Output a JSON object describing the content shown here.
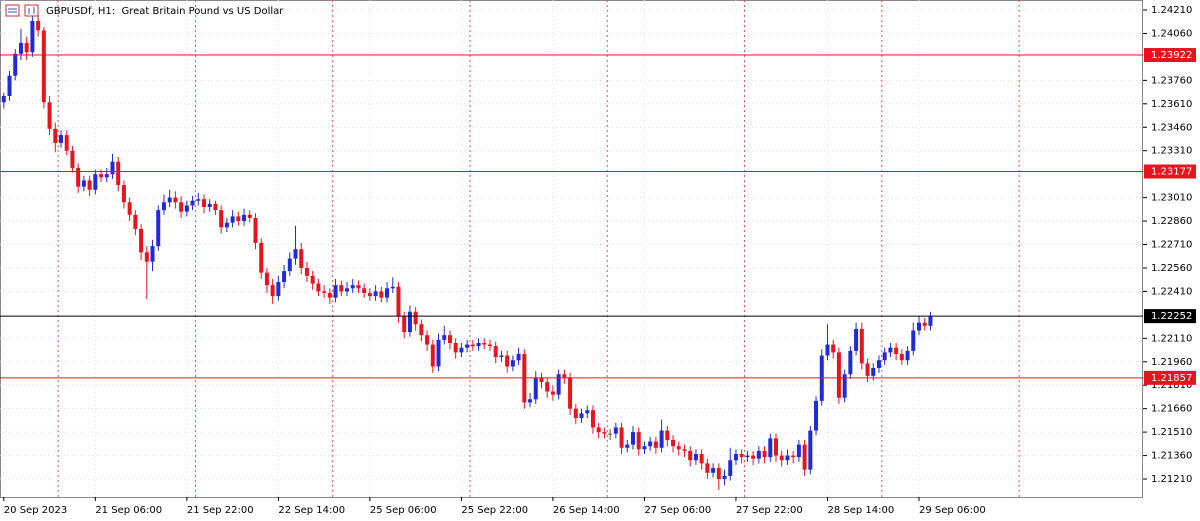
{
  "chart_data": {
    "type": "candlestick",
    "title": "GBPUSDf, H1:  Great Britain Pound vs US Dollar",
    "up_color": "#1f2ad8",
    "down_color": "#e8141d",
    "ylim": [
      1.21095,
      1.24274
    ],
    "yticks": [
      {
        "value": 1.2421,
        "label": "1.24210"
      },
      {
        "value": 1.2406,
        "label": "1.24060"
      },
      {
        "value": 1.2376,
        "label": "1.23760"
      },
      {
        "value": 1.2361,
        "label": "1.23610"
      },
      {
        "value": 1.2346,
        "label": "1.23460"
      },
      {
        "value": 1.2331,
        "label": "1.23310"
      },
      {
        "value": 1.2301,
        "label": "1.23010"
      },
      {
        "value": 1.2286,
        "label": "1.22860"
      },
      {
        "value": 1.2271,
        "label": "1.22710"
      },
      {
        "value": 1.2256,
        "label": "1.22560"
      },
      {
        "value": 1.2241,
        "label": "1.22410"
      },
      {
        "value": 1.2211,
        "label": "1.22110"
      },
      {
        "value": 1.2196,
        "label": "1.21960"
      },
      {
        "value": 1.2181,
        "label": "1.21810"
      },
      {
        "value": 1.2166,
        "label": "1.21660"
      },
      {
        "value": 1.2151,
        "label": "1.21510"
      },
      {
        "value": 1.2136,
        "label": "1.21360"
      },
      {
        "value": 1.2121,
        "label": "1.21210"
      }
    ],
    "grid": true,
    "xticks": [
      {
        "value": 0,
        "label": "20 Sep 2023"
      },
      {
        "value": 16,
        "label": "21 Sep 06:00"
      },
      {
        "value": 32,
        "label": "21 Sep 22:00"
      },
      {
        "value": 48,
        "label": "22 Sep 14:00"
      },
      {
        "value": 64,
        "label": "25 Sep 06:00"
      },
      {
        "value": 80,
        "label": "25 Sep 22:00"
      },
      {
        "value": 96,
        "label": "26 Sep 14:00"
      },
      {
        "value": 112,
        "label": "27 Sep 06:00"
      },
      {
        "value": 128,
        "label": "27 Sep 22:00"
      },
      {
        "value": 144,
        "label": "28 Sep 14:00"
      },
      {
        "value": 160,
        "label": "29 Sep 06:00"
      }
    ],
    "period_separators": [
      10,
      34,
      58,
      82,
      106,
      130,
      154,
      178
    ],
    "levels": [
      {
        "value": 1.23922,
        "color": "#e8141d"
      },
      {
        "value": 1.23177,
        "color": "#e8141d"
      },
      {
        "value": 1.22252,
        "color": "#000000"
      },
      {
        "value": 1.21857,
        "color": "#e8141d"
      }
    ],
    "ohlc": [
      [
        1.2362,
        1.2368,
        1.2358,
        1.2366
      ],
      [
        1.2366,
        1.2382,
        1.2363,
        1.2379
      ],
      [
        1.2379,
        1.2396,
        1.2376,
        1.2393
      ],
      [
        1.2393,
        1.2409,
        1.2389,
        1.24
      ],
      [
        1.24,
        1.2404,
        1.2389,
        1.2394
      ],
      [
        1.2394,
        1.2421,
        1.2391,
        1.2414
      ],
      [
        1.2414,
        1.2418,
        1.2404,
        1.2408
      ],
      [
        1.2408,
        1.241,
        1.2358,
        1.2362
      ],
      [
        1.2362,
        1.2366,
        1.2341,
        1.2345
      ],
      [
        1.2345,
        1.2349,
        1.233,
        1.2336
      ],
      [
        1.2336,
        1.2344,
        1.2333,
        1.2341
      ],
      [
        1.2341,
        1.2344,
        1.2328,
        1.2331
      ],
      [
        1.2331,
        1.2334,
        1.2317,
        1.232
      ],
      [
        1.232,
        1.2323,
        1.2304,
        1.2308
      ],
      [
        1.2308,
        1.2315,
        1.2305,
        1.2312
      ],
      [
        1.2312,
        1.2315,
        1.2302,
        1.2306
      ],
      [
        1.2306,
        1.2319,
        1.2303,
        1.2316
      ],
      [
        1.2316,
        1.2319,
        1.2311,
        1.2314
      ],
      [
        1.2314,
        1.232,
        1.2311,
        1.2316
      ],
      [
        1.2316,
        1.2329,
        1.2313,
        1.2324
      ],
      [
        1.2324,
        1.2327,
        1.2305,
        1.2309
      ],
      [
        1.2309,
        1.2312,
        1.2294,
        1.2298
      ],
      [
        1.2298,
        1.2301,
        1.2286,
        1.229
      ],
      [
        1.229,
        1.2293,
        1.2277,
        1.2281
      ],
      [
        1.2281,
        1.2284,
        1.2261,
        1.2266
      ],
      [
        1.2266,
        1.227,
        1.2236,
        1.226
      ],
      [
        1.226,
        1.2274,
        1.2254,
        1.227
      ],
      [
        1.227,
        1.2296,
        1.2267,
        1.2293
      ],
      [
        1.2293,
        1.2303,
        1.229,
        1.2298
      ],
      [
        1.2298,
        1.2306,
        1.2295,
        1.2301
      ],
      [
        1.2301,
        1.2305,
        1.2294,
        1.2298
      ],
      [
        1.2298,
        1.2302,
        1.2288,
        1.2292
      ],
      [
        1.2292,
        1.2299,
        1.2289,
        1.2296
      ],
      [
        1.2296,
        1.2302,
        1.2293,
        1.2299
      ],
      [
        1.2299,
        1.2304,
        1.2296,
        1.23
      ],
      [
        1.23,
        1.2303,
        1.2291,
        1.2295
      ],
      [
        1.2295,
        1.23,
        1.2292,
        1.2297
      ],
      [
        1.2297,
        1.2299,
        1.229,
        1.2293
      ],
      [
        1.2293,
        1.2296,
        1.2278,
        1.2282
      ],
      [
        1.2282,
        1.2288,
        1.2279,
        1.2285
      ],
      [
        1.2285,
        1.2293,
        1.2282,
        1.2289
      ],
      [
        1.2289,
        1.2292,
        1.2283,
        1.2286
      ],
      [
        1.2286,
        1.2294,
        1.2283,
        1.229
      ],
      [
        1.229,
        1.2293,
        1.2285,
        1.2288
      ],
      [
        1.2288,
        1.2291,
        1.2268,
        1.2272
      ],
      [
        1.2272,
        1.2275,
        1.2249,
        1.2253
      ],
      [
        1.2253,
        1.2256,
        1.224,
        1.2245
      ],
      [
        1.2245,
        1.2249,
        1.2233,
        1.2238
      ],
      [
        1.2238,
        1.2251,
        1.2235,
        1.2247
      ],
      [
        1.2247,
        1.2258,
        1.2243,
        1.2254
      ],
      [
        1.2254,
        1.2266,
        1.2251,
        1.2262
      ],
      [
        1.2262,
        1.2283,
        1.2258,
        1.2268
      ],
      [
        1.2268,
        1.2272,
        1.2252,
        1.2256
      ],
      [
        1.2256,
        1.226,
        1.2247,
        1.2251
      ],
      [
        1.2251,
        1.2254,
        1.2242,
        1.2246
      ],
      [
        1.2246,
        1.2249,
        1.2238,
        1.2241
      ],
      [
        1.2241,
        1.2245,
        1.2237,
        1.224
      ],
      [
        1.224,
        1.2243,
        1.2233,
        1.2237
      ],
      [
        1.2237,
        1.2249,
        1.2234,
        1.2245
      ],
      [
        1.2245,
        1.2248,
        1.2238,
        1.2241
      ],
      [
        1.2241,
        1.2247,
        1.2238,
        1.2243
      ],
      [
        1.2243,
        1.2249,
        1.224,
        1.2245
      ],
      [
        1.2245,
        1.2248,
        1.224,
        1.2243
      ],
      [
        1.2243,
        1.2246,
        1.2237,
        1.224
      ],
      [
        1.224,
        1.2243,
        1.2235,
        1.2238
      ],
      [
        1.2238,
        1.2245,
        1.2235,
        1.2241
      ],
      [
        1.2241,
        1.2244,
        1.2234,
        1.2237
      ],
      [
        1.2237,
        1.2247,
        1.2234,
        1.2243
      ],
      [
        1.2243,
        1.225,
        1.224,
        1.2244
      ],
      [
        1.2244,
        1.2247,
        1.2221,
        1.2225
      ],
      [
        1.2225,
        1.2228,
        1.2211,
        1.2215
      ],
      [
        1.2215,
        1.2232,
        1.2212,
        1.2228
      ],
      [
        1.2228,
        1.2231,
        1.2216,
        1.222
      ],
      [
        1.222,
        1.2223,
        1.2209,
        1.2213
      ],
      [
        1.2213,
        1.2216,
        1.2203,
        1.2207
      ],
      [
        1.2207,
        1.221,
        1.2189,
        1.2193
      ],
      [
        1.2193,
        1.2214,
        1.219,
        1.221
      ],
      [
        1.221,
        1.2219,
        1.2207,
        1.2213
      ],
      [
        1.2213,
        1.2216,
        1.2204,
        1.2208
      ],
      [
        1.2208,
        1.2211,
        1.2198,
        1.2202
      ],
      [
        1.2202,
        1.2208,
        1.2199,
        1.2205
      ],
      [
        1.2205,
        1.221,
        1.2202,
        1.2207
      ],
      [
        1.2207,
        1.221,
        1.2203,
        1.2206
      ],
      [
        1.2206,
        1.2211,
        1.2203,
        1.2208
      ],
      [
        1.2208,
        1.2211,
        1.2204,
        1.2207
      ],
      [
        1.2207,
        1.221,
        1.2203,
        1.2206
      ],
      [
        1.2206,
        1.2209,
        1.2195,
        1.2199
      ],
      [
        1.2199,
        1.2203,
        1.2196,
        1.22
      ],
      [
        1.22,
        1.2203,
        1.2189,
        1.2193
      ],
      [
        1.2193,
        1.22,
        1.219,
        1.2197
      ],
      [
        1.2197,
        1.2205,
        1.2194,
        1.2201
      ],
      [
        1.2201,
        1.2204,
        1.2166,
        1.217
      ],
      [
        1.217,
        1.2176,
        1.2167,
        1.2172
      ],
      [
        1.2172,
        1.219,
        1.2169,
        1.2186
      ],
      [
        1.2186,
        1.2189,
        1.2179,
        1.2183
      ],
      [
        1.2183,
        1.2186,
        1.2173,
        1.2177
      ],
      [
        1.2177,
        1.2181,
        1.2171,
        1.2175
      ],
      [
        1.2175,
        1.2191,
        1.2172,
        1.2188
      ],
      [
        1.2188,
        1.2191,
        1.2182,
        1.2186
      ],
      [
        1.2186,
        1.2189,
        1.2162,
        1.2166
      ],
      [
        1.2166,
        1.2169,
        1.2156,
        1.216
      ],
      [
        1.216,
        1.2166,
        1.2157,
        1.2163
      ],
      [
        1.2163,
        1.2168,
        1.216,
        1.2165
      ],
      [
        1.2165,
        1.2168,
        1.215,
        1.2154
      ],
      [
        1.2154,
        1.2157,
        1.2147,
        1.2151
      ],
      [
        1.2151,
        1.2154,
        1.2147,
        1.215
      ],
      [
        1.215,
        1.2153,
        1.2146,
        1.215
      ],
      [
        1.215,
        1.2157,
        1.2147,
        1.2154
      ],
      [
        1.2154,
        1.2157,
        1.2137,
        1.2141
      ],
      [
        1.2141,
        1.2146,
        1.2138,
        1.2143
      ],
      [
        1.2143,
        1.2155,
        1.214,
        1.2151
      ],
      [
        1.2151,
        1.2154,
        1.2136,
        1.214
      ],
      [
        1.214,
        1.2145,
        1.2137,
        1.2142
      ],
      [
        1.2142,
        1.2148,
        1.2139,
        1.2145
      ],
      [
        1.2145,
        1.2148,
        1.2137,
        1.2141
      ],
      [
        1.2141,
        1.2159,
        1.2138,
        1.2152
      ],
      [
        1.2152,
        1.2155,
        1.2142,
        1.2146
      ],
      [
        1.2146,
        1.2149,
        1.2138,
        1.2142
      ],
      [
        1.2142,
        1.2145,
        1.2136,
        1.214
      ],
      [
        1.214,
        1.2143,
        1.2135,
        1.2139
      ],
      [
        1.2139,
        1.2142,
        1.2129,
        1.2133
      ],
      [
        1.2133,
        1.214,
        1.213,
        1.2137
      ],
      [
        1.2137,
        1.214,
        1.2127,
        1.2131
      ],
      [
        1.2131,
        1.2134,
        1.2121,
        1.2125
      ],
      [
        1.2125,
        1.2131,
        1.2122,
        1.2128
      ],
      [
        1.2128,
        1.2131,
        1.2114,
        1.2121
      ],
      [
        1.2121,
        1.2127,
        1.2117,
        1.2123
      ],
      [
        1.2123,
        1.2141,
        1.212,
        1.2133
      ],
      [
        1.2133,
        1.214,
        1.213,
        1.2137
      ],
      [
        1.2137,
        1.214,
        1.2131,
        1.2135
      ],
      [
        1.2135,
        1.2139,
        1.2132,
        1.2136
      ],
      [
        1.2136,
        1.2139,
        1.213,
        1.2134
      ],
      [
        1.2134,
        1.2142,
        1.2131,
        1.2139
      ],
      [
        1.2139,
        1.2142,
        1.2131,
        1.2135
      ],
      [
        1.2135,
        1.215,
        1.2132,
        1.2147
      ],
      [
        1.2147,
        1.215,
        1.2132,
        1.2136
      ],
      [
        1.2136,
        1.2139,
        1.2129,
        1.2133
      ],
      [
        1.2133,
        1.214,
        1.213,
        1.2136
      ],
      [
        1.2136,
        1.2139,
        1.2131,
        1.2135
      ],
      [
        1.2135,
        1.2146,
        1.2132,
        1.2143
      ],
      [
        1.2143,
        1.2146,
        1.2123,
        1.2127
      ],
      [
        1.2127,
        1.2155,
        1.2124,
        1.2152
      ],
      [
        1.2152,
        1.2174,
        1.2149,
        1.2171
      ],
      [
        1.2171,
        1.2204,
        1.2168,
        1.22
      ],
      [
        1.22,
        1.222,
        1.2197,
        1.2207
      ],
      [
        1.2207,
        1.221,
        1.2198,
        1.2202
      ],
      [
        1.2202,
        1.2205,
        1.2169,
        1.2173
      ],
      [
        1.2173,
        1.2191,
        1.217,
        1.2188
      ],
      [
        1.2188,
        1.2206,
        1.2185,
        1.2203
      ],
      [
        1.2203,
        1.2221,
        1.22,
        1.2217
      ],
      [
        1.2217,
        1.2221,
        1.2191,
        1.2195
      ],
      [
        1.2195,
        1.2198,
        1.2183,
        1.2187
      ],
      [
        1.2187,
        1.2195,
        1.2184,
        1.2192
      ],
      [
        1.2192,
        1.22,
        1.2189,
        1.2197
      ],
      [
        1.2197,
        1.2205,
        1.2194,
        1.2202
      ],
      [
        1.2202,
        1.2208,
        1.2199,
        1.2205
      ],
      [
        1.2205,
        1.2208,
        1.2197,
        1.2201
      ],
      [
        1.2201,
        1.2204,
        1.2194,
        1.2197
      ],
      [
        1.2197,
        1.2206,
        1.2194,
        1.2203
      ],
      [
        1.2203,
        1.2221,
        1.22,
        1.2216
      ],
      [
        1.2216,
        1.2225,
        1.2213,
        1.2221
      ],
      [
        1.2221,
        1.2224,
        1.2216,
        1.2219
      ],
      [
        1.2219,
        1.2228,
        1.2216,
        1.2225
      ]
    ]
  }
}
